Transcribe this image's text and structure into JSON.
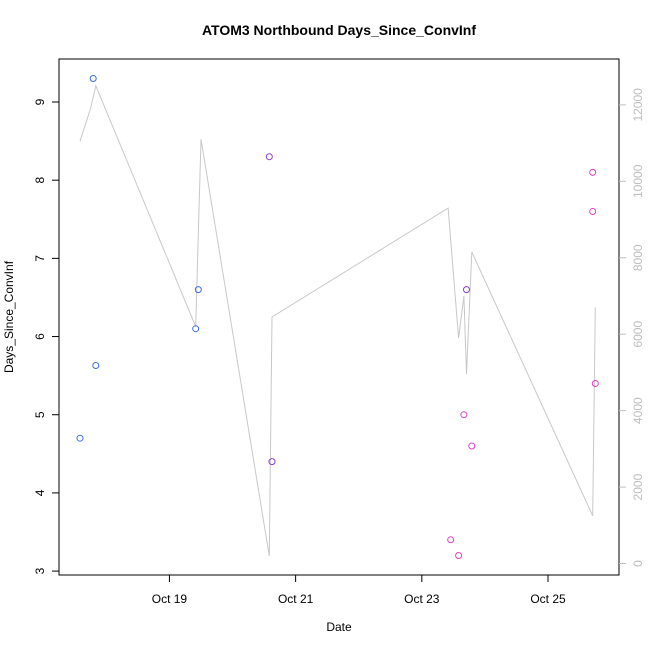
{
  "chart_data": {
    "type": "scatter",
    "title": "ATOM3 Northbound Days_Since_ConvInf",
    "xlabel": "Date",
    "ylabel": "Days_Since_ConvInf",
    "xlim": [
      "2023-10-17T06:00",
      "2023-10-26T03:00"
    ],
    "ylim": [
      2.95,
      9.55
    ],
    "y2lim": [
      -300,
      13200
    ],
    "x_ticks": [
      {
        "value": "2023-10-19",
        "label": "Oct 19"
      },
      {
        "value": "2023-10-21",
        "label": "Oct 21"
      },
      {
        "value": "2023-10-23",
        "label": "Oct 23"
      },
      {
        "value": "2023-10-25",
        "label": "Oct 25"
      }
    ],
    "y_ticks": [
      3,
      4,
      5,
      6,
      7,
      8,
      9
    ],
    "y2_ticks": [
      0,
      2000,
      4000,
      6000,
      8000,
      10000,
      12000
    ],
    "grid": false,
    "colors": {
      "blue_points": "#3b6fe0",
      "violet_points": "#8a3fd0",
      "magenta_points": "#e040c8",
      "line": "#c8c8c8",
      "axis": "#000000",
      "right_axis": "#bdbdbd"
    },
    "series": [
      {
        "type": "scatter",
        "color": "#3b6fe0",
        "points": [
          {
            "x": "2023-10-17T14:00",
            "y": 4.7
          },
          {
            "x": "2023-10-17T19:00",
            "y": 9.3
          },
          {
            "x": "2023-10-17T20:00",
            "y": 5.63
          },
          {
            "x": "2023-10-19T10:00",
            "y": 6.1
          },
          {
            "x": "2023-10-19T11:00",
            "y": 6.6
          }
        ]
      },
      {
        "type": "scatter",
        "color": "#8a3fd0",
        "points": [
          {
            "x": "2023-10-20T14:00",
            "y": 8.3
          },
          {
            "x": "2023-10-20T15:00",
            "y": 4.4
          },
          {
            "x": "2023-10-23T17:00",
            "y": 6.6
          }
        ]
      },
      {
        "type": "scatter",
        "color": "#e040c8",
        "points": [
          {
            "x": "2023-10-23T11:00",
            "y": 3.4
          },
          {
            "x": "2023-10-23T14:00",
            "y": 3.2
          },
          {
            "x": "2023-10-23T16:00",
            "y": 5.0
          },
          {
            "x": "2023-10-23T19:00",
            "y": 4.6
          },
          {
            "x": "2023-10-25T17:00",
            "y": 8.1
          },
          {
            "x": "2023-10-25T17:00",
            "y": 7.6
          },
          {
            "x": "2023-10-25T18:00",
            "y": 5.4
          }
        ]
      },
      {
        "type": "line",
        "axis": "right",
        "color": "#c8c8c8",
        "points": [
          {
            "x": "2023-10-17T14:00",
            "y": 11050
          },
          {
            "x": "2023-10-17T18:00",
            "y": 11900
          },
          {
            "x": "2023-10-17T20:00",
            "y": 12500
          },
          {
            "x": "2023-10-19T10:00",
            "y": 6200
          },
          {
            "x": "2023-10-19T12:00",
            "y": 11100
          },
          {
            "x": "2023-10-20T14:00",
            "y": 200
          },
          {
            "x": "2023-10-20T15:00",
            "y": 6450
          },
          {
            "x": "2023-10-23T10:00",
            "y": 9300
          },
          {
            "x": "2023-10-23T14:00",
            "y": 5900
          },
          {
            "x": "2023-10-23T16:00",
            "y": 7000
          },
          {
            "x": "2023-10-23T17:00",
            "y": 4950
          },
          {
            "x": "2023-10-23T19:00",
            "y": 8150
          },
          {
            "x": "2023-10-25T17:00",
            "y": 1250
          },
          {
            "x": "2023-10-25T18:00",
            "y": 6700
          }
        ]
      }
    ]
  }
}
